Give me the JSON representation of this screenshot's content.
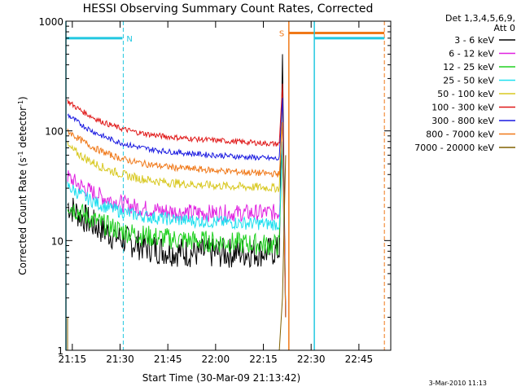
{
  "chart_data": {
    "type": "line",
    "title": "HESSI Observing Summary Count Rates, Corrected",
    "xlabel": "Start Time (30-Mar-09 21:13:42)",
    "ylabel_main": "Corrected Count Rate (s",
    "ylabel_sup1": "-1",
    "ylabel_mid": " detector",
    "ylabel_sup2": "-1",
    "ylabel_end": ")",
    "ylog": true,
    "ylim": [
      1,
      1000
    ],
    "xlim": [
      "21:13",
      "22:55"
    ],
    "x_ticks": [
      "21:15",
      "21:30",
      "21:45",
      "22:00",
      "22:15",
      "22:30",
      "22:45"
    ],
    "y_ticks": [
      "1",
      "10",
      "100",
      "1000"
    ],
    "timestamp": "3-Mar-2010 11:13",
    "legend_header": [
      "Det 1,3,4,5,6,9,",
      "Att 0"
    ],
    "legend_position": "right",
    "flags": [
      {
        "label": "N",
        "color": "#22c8e0",
        "start": "21:13",
        "end": "21:31",
        "style": "cyan-solid-dashed"
      },
      {
        "label": "S",
        "color": "#f07818",
        "start": "22:23",
        "end": "22:53",
        "style": "orange"
      },
      {
        "label": "",
        "color": "#22c8e0",
        "start": "22:31",
        "end": "22:53",
        "style": "cyan"
      }
    ],
    "series": [
      {
        "name": "3 - 6 keV",
        "color": "#000000"
      },
      {
        "name": "6 - 12 keV",
        "color": "#e020e0"
      },
      {
        "name": "12 - 25 keV",
        "color": "#20d020"
      },
      {
        "name": "25 - 50 keV",
        "color": "#20e0f0"
      },
      {
        "name": "50 - 100 keV",
        "color": "#d8c820"
      },
      {
        "name": "100 - 300 keV",
        "color": "#e01818"
      },
      {
        "name": "300 - 800 keV",
        "color": "#1818e0"
      },
      {
        "name": "800 - 7000 keV",
        "color": "#f07818"
      },
      {
        "name": "7000 - 20000 keV",
        "color": "#806000"
      }
    ]
  }
}
